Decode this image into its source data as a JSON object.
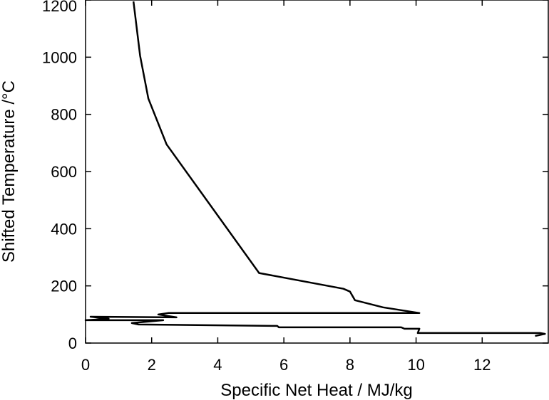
{
  "chart_data": {
    "type": "line",
    "xlabel": "Specific Net Heat / MJ/kg",
    "ylabel": "Shifted Temperature /°C",
    "xlim": [
      0,
      14
    ],
    "ylim": [
      0,
      1200
    ],
    "xticks": [
      0,
      2,
      4,
      6,
      8,
      10,
      12
    ],
    "yticks": [
      0,
      200,
      400,
      600,
      800,
      1000,
      1200
    ],
    "grid": false,
    "line_color": "#000000",
    "series": [
      {
        "x": [
          1.45,
          1.65,
          1.9,
          2.45,
          5.25,
          7.8,
          8.0,
          8.15,
          9.0,
          10.1,
          2.5,
          2.2,
          2.75,
          0.15,
          0.7,
          0.0,
          2.35,
          1.4,
          1.6,
          5.8,
          5.85,
          9.55,
          9.65,
          10.1,
          10.05,
          13.75,
          13.9,
          13.6
        ],
        "y": [
          1195,
          1005,
          855,
          695,
          245,
          190,
          180,
          150,
          125,
          105,
          105,
          100,
          90,
          92,
          85,
          80,
          80,
          70,
          65,
          60,
          55,
          55,
          50,
          50,
          35,
          35,
          32,
          25
        ]
      }
    ]
  }
}
